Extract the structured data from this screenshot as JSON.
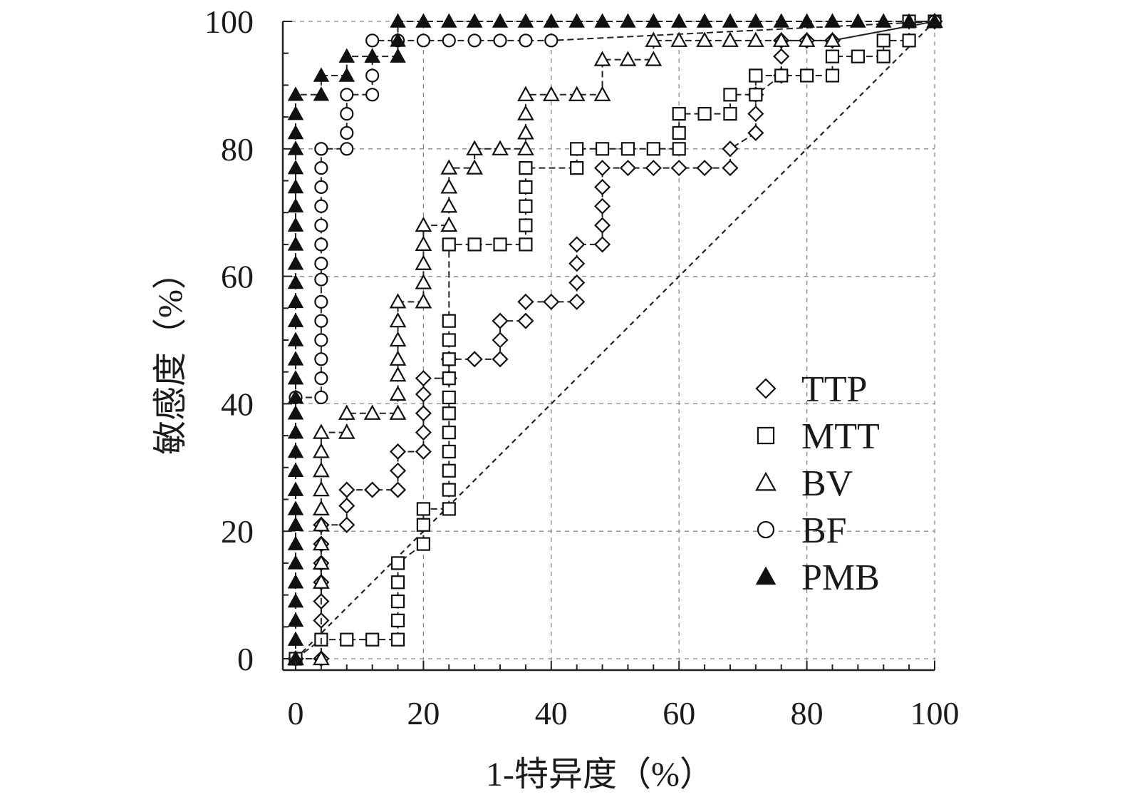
{
  "chart_data": {
    "type": "line",
    "subtype": "roc",
    "xlabel": "1-特异度（%）",
    "ylabel": "敏感度（%）",
    "xlim": [
      0,
      100
    ],
    "ylim": [
      0,
      100
    ],
    "x_ticks": [
      "0",
      "20",
      "40",
      "60",
      "80",
      "100"
    ],
    "y_ticks": [
      "0",
      "20",
      "40",
      "60",
      "80",
      "100"
    ],
    "grid": true,
    "legend_position": "right-center",
    "reference_line": {
      "x": [
        0,
        100
      ],
      "y": [
        0,
        100
      ],
      "style": "dashed"
    },
    "series": [
      {
        "name": "TTP",
        "marker": "diamond-open",
        "x": [
          0,
          4,
          4,
          4,
          4,
          4,
          4,
          4,
          4,
          8,
          8,
          8,
          12,
          16,
          16,
          16,
          20,
          20,
          20,
          20,
          20,
          24,
          24,
          28,
          32,
          32,
          32,
          36,
          36,
          40,
          44,
          44,
          44,
          44,
          48,
          48,
          48,
          48,
          48,
          52,
          56,
          60,
          64,
          68,
          68,
          72,
          72,
          72,
          76,
          76,
          76,
          80,
          84,
          100
        ],
        "y": [
          0,
          0,
          6,
          9,
          12,
          15,
          18,
          21,
          21,
          21,
          24,
          26.5,
          26.5,
          26.5,
          29.5,
          32.5,
          32.5,
          35.5,
          38.5,
          41.5,
          44,
          44,
          47,
          47,
          47,
          50,
          53,
          53,
          56,
          56,
          56,
          59,
          62,
          65,
          65,
          68,
          71,
          74,
          77,
          77,
          77,
          77,
          77,
          77,
          80,
          82.5,
          85.5,
          88.5,
          91.5,
          94.5,
          97,
          97,
          97,
          100
        ]
      },
      {
        "name": "MTT",
        "marker": "square-open",
        "x": [
          0,
          4,
          8,
          12,
          16,
          16,
          16,
          16,
          16,
          20,
          20,
          20,
          24,
          24,
          24,
          24,
          24,
          24,
          24,
          24,
          24,
          24,
          24,
          24,
          28,
          32,
          36,
          36,
          36,
          36,
          36,
          44,
          44,
          48,
          52,
          56,
          60,
          60,
          60,
          64,
          68,
          68,
          72,
          72,
          72,
          76,
          80,
          84,
          84,
          88,
          92,
          92,
          96,
          96,
          100
        ],
        "y": [
          0,
          3,
          3,
          3,
          3,
          6,
          9,
          12,
          15,
          18,
          21,
          23.5,
          23.5,
          26.5,
          29.5,
          32.5,
          35.5,
          38.5,
          41,
          44,
          47,
          50,
          53,
          65,
          65,
          65,
          65,
          68,
          71,
          74,
          77,
          77,
          80,
          80,
          80,
          80,
          80,
          82.5,
          85.5,
          85.5,
          85.5,
          88.5,
          88.5,
          91.5,
          91.5,
          91.5,
          91.5,
          91.5,
          94.5,
          94.5,
          94.5,
          97,
          97,
          100,
          100
        ]
      },
      {
        "name": "BV",
        "marker": "triangle-open",
        "x": [
          0,
          4,
          4,
          4,
          4,
          4,
          4,
          4,
          4,
          4,
          4,
          8,
          8,
          12,
          16,
          16,
          16,
          16,
          16,
          16,
          16,
          20,
          20,
          20,
          20,
          20,
          24,
          24,
          24,
          24,
          28,
          28,
          32,
          36,
          36,
          36,
          36,
          40,
          44,
          48,
          48,
          52,
          56,
          56,
          60,
          64,
          68,
          72,
          76,
          80,
          84,
          100
        ],
        "y": [
          0,
          0,
          12,
          15,
          18,
          21,
          23.5,
          26.5,
          29.5,
          32.5,
          35.5,
          35.5,
          38.5,
          38.5,
          38.5,
          41.5,
          44.5,
          47,
          50,
          53,
          56,
          56,
          59,
          62,
          65,
          68,
          68,
          71,
          74,
          77,
          77,
          80,
          80,
          80,
          82.5,
          85.5,
          88.5,
          88.5,
          88.5,
          88.5,
          94,
          94,
          94,
          97,
          97,
          97,
          97,
          97,
          97,
          97,
          97,
          100
        ]
      },
      {
        "name": "BF",
        "marker": "circle-open",
        "x": [
          0,
          4,
          4,
          4,
          4,
          4,
          4,
          4,
          4,
          4,
          4,
          4,
          4,
          4,
          4,
          4,
          8,
          8,
          8,
          8,
          12,
          12,
          12,
          16,
          20,
          24,
          28,
          32,
          36,
          40,
          100
        ],
        "y": [
          41,
          41,
          44,
          47,
          50,
          53,
          56,
          59.5,
          62,
          65,
          68,
          71,
          74,
          77,
          80,
          80,
          80,
          82.5,
          85.5,
          88.5,
          88.5,
          91.5,
          97,
          97,
          97,
          97,
          97,
          97,
          97,
          97,
          100
        ]
      },
      {
        "name": "PMB",
        "marker": "triangle-filled",
        "x": [
          0,
          0,
          0,
          0,
          0,
          0,
          0,
          0,
          0,
          0,
          0,
          0,
          0,
          0,
          0,
          0,
          0,
          0,
          0,
          0,
          0,
          0,
          0,
          0,
          0,
          0,
          0,
          0,
          0,
          0,
          0,
          4,
          4,
          8,
          8,
          12,
          12,
          16,
          16,
          16,
          20,
          24,
          28,
          32,
          36,
          40,
          44,
          48,
          52,
          56,
          60,
          64,
          68,
          72,
          76,
          80,
          84,
          88,
          92,
          96,
          100
        ],
        "y": [
          0,
          3,
          6,
          9,
          12,
          15,
          18,
          21,
          23.5,
          26.5,
          29.5,
          32.5,
          35.5,
          38.5,
          41,
          44,
          47,
          50,
          53,
          56,
          59,
          62,
          65,
          68,
          71,
          74,
          77,
          80,
          82.5,
          85.5,
          88.5,
          88.5,
          91.5,
          91.5,
          94.5,
          94.5,
          94.5,
          94.5,
          97,
          100,
          100,
          100,
          100,
          100,
          100,
          100,
          100,
          100,
          100,
          100,
          100,
          100,
          100,
          100,
          100,
          100,
          100,
          100,
          100,
          100,
          100
        ]
      }
    ]
  }
}
